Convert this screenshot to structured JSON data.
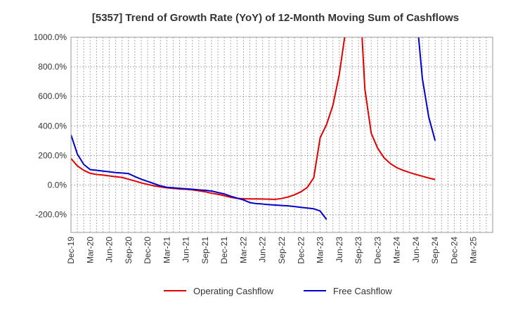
{
  "chart_data": {
    "type": "line",
    "title": "[5357]  Trend of Growth Rate (YoY) of 12-Month Moving Sum of Cashflows",
    "xlabel": "",
    "ylabel": "",
    "ylim": [
      -320,
      1000
    ],
    "y_ticks": [
      1000,
      800,
      600,
      400,
      200,
      0,
      -200
    ],
    "y_tick_labels": [
      "1000.0%",
      "800.0%",
      "600.0%",
      "400.0%",
      "200.0%",
      "0.0%",
      "-200.0%"
    ],
    "x_tick_labels": [
      "Dec-19",
      "Mar-20",
      "Jun-20",
      "Sep-20",
      "Dec-20",
      "Mar-21",
      "Jun-21",
      "Sep-21",
      "Dec-21",
      "Mar-22",
      "Jun-22",
      "Sep-22",
      "Dec-22",
      "Mar-23",
      "Jun-23",
      "Sep-23",
      "Dec-23",
      "Mar-24",
      "Jun-24",
      "Sep-24",
      "Dec-24",
      "Mar-25"
    ],
    "grid": true,
    "legend_position": "bottom-center",
    "series": [
      {
        "name": "Operating Cashflow",
        "color": "#e00000",
        "points": [
          [
            0,
            180
          ],
          [
            1,
            130
          ],
          [
            2,
            100
          ],
          [
            3,
            80
          ],
          [
            4,
            72
          ],
          [
            5,
            68
          ],
          [
            6,
            62
          ],
          [
            7,
            57
          ],
          [
            8,
            52
          ],
          [
            9,
            40
          ],
          [
            10,
            28
          ],
          [
            11,
            15
          ],
          [
            12,
            5
          ],
          [
            13,
            -5
          ],
          [
            14,
            -12
          ],
          [
            15,
            -18
          ],
          [
            16,
            -22
          ],
          [
            17,
            -26
          ],
          [
            18,
            -28
          ],
          [
            19,
            -32
          ],
          [
            20,
            -38
          ],
          [
            21,
            -45
          ],
          [
            22,
            -55
          ],
          [
            23,
            -62
          ],
          [
            24,
            -72
          ],
          [
            25,
            -82
          ],
          [
            26,
            -90
          ],
          [
            27,
            -92
          ],
          [
            28,
            -93
          ],
          [
            29,
            -93
          ],
          [
            30,
            -94
          ],
          [
            31,
            -95
          ],
          [
            32,
            -96
          ],
          [
            33,
            -90
          ],
          [
            34,
            -80
          ],
          [
            35,
            -65
          ],
          [
            36,
            -45
          ],
          [
            37,
            -15
          ],
          [
            38,
            50
          ],
          [
            39,
            320
          ],
          [
            40,
            410
          ],
          [
            41,
            540
          ],
          [
            42,
            750
          ],
          [
            43,
            1050
          ],
          [
            45.5,
            1050
          ],
          [
            46,
            650
          ],
          [
            47,
            350
          ],
          [
            48,
            250
          ],
          [
            49,
            185
          ],
          [
            50,
            145
          ],
          [
            51,
            118
          ],
          [
            52,
            100
          ],
          [
            53,
            85
          ],
          [
            54,
            72
          ],
          [
            55,
            60
          ],
          [
            56,
            48
          ],
          [
            57,
            38
          ]
        ]
      },
      {
        "name": "Free Cashflow",
        "color": "#0000cc",
        "points": [
          [
            0,
            340
          ],
          [
            1,
            210
          ],
          [
            2,
            140
          ],
          [
            3,
            105
          ],
          [
            4,
            100
          ],
          [
            5,
            95
          ],
          [
            6,
            90
          ],
          [
            7,
            85
          ],
          [
            8,
            82
          ],
          [
            9,
            78
          ],
          [
            10,
            58
          ],
          [
            11,
            40
          ],
          [
            12,
            25
          ],
          [
            13,
            10
          ],
          [
            14,
            -5
          ],
          [
            15,
            -15
          ],
          [
            16,
            -18
          ],
          [
            17,
            -22
          ],
          [
            18,
            -25
          ],
          [
            19,
            -28
          ],
          [
            20,
            -32
          ],
          [
            21,
            -35
          ],
          [
            22,
            -40
          ],
          [
            23,
            -50
          ],
          [
            24,
            -60
          ],
          [
            25,
            -75
          ],
          [
            26,
            -88
          ],
          [
            27,
            -100
          ],
          [
            28,
            -118
          ],
          [
            29,
            -125
          ],
          [
            30,
            -128
          ],
          [
            31,
            -132
          ],
          [
            32,
            -135
          ],
          [
            33,
            -138
          ],
          [
            34,
            -140
          ],
          [
            35,
            -145
          ],
          [
            36,
            -150
          ],
          [
            37,
            -155
          ],
          [
            38,
            -160
          ],
          [
            39,
            -175
          ],
          [
            40,
            -232
          ]
        ],
        "points_segment_2": [
          [
            54.3,
            1050
          ],
          [
            55,
            720
          ],
          [
            56,
            460
          ],
          [
            57,
            300
          ]
        ]
      }
    ]
  }
}
